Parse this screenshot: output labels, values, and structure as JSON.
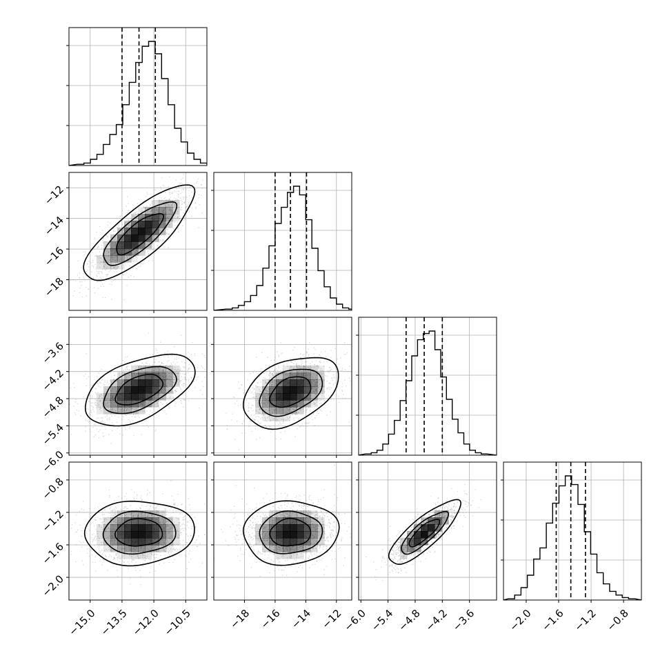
{
  "chart_data": {
    "type": "corner",
    "title": "",
    "grid": true,
    "parameters": [
      {
        "range": [
          -16.0,
          -9.5
        ],
        "ticks": [
          -15.0,
          -13.5,
          -12.0,
          -10.5
        ],
        "tick_labels": [
          "−15.0",
          "−13.5",
          "−12.0",
          "−10.5"
        ],
        "quantiles": [
          -13.5,
          -12.7,
          -11.93
        ],
        "hist": {
          "start": -15.6,
          "width": 0.305,
          "counts": [
            0.01,
            0.02,
            0.05,
            0.09,
            0.17,
            0.25,
            0.33,
            0.49,
            0.67,
            0.83,
            0.96,
            1.0,
            0.9,
            0.7,
            0.49,
            0.3,
            0.19,
            0.1,
            0.05,
            0.02,
            0.01
          ]
        }
      },
      {
        "range": [
          -20.0,
          -11.0
        ],
        "ticks": [
          -18,
          -16,
          -14,
          -12
        ],
        "tick_labels": [
          "−18",
          "−16",
          "−14",
          "−12"
        ],
        "quantiles": [
          -16.0,
          -15.0,
          -13.95
        ],
        "hist": {
          "start": -19.2,
          "width": 0.4,
          "counts": [
            0.01,
            0.02,
            0.04,
            0.07,
            0.12,
            0.2,
            0.34,
            0.52,
            0.7,
            0.83,
            0.95,
            1.0,
            0.93,
            0.73,
            0.5,
            0.32,
            0.19,
            0.1,
            0.05,
            0.02,
            0.01
          ]
        }
      },
      {
        "range": [
          -6.05,
          -3.0
        ],
        "ticks": [
          -6.0,
          -5.4,
          -4.8,
          -4.2,
          -3.6
        ],
        "tick_labels": [
          "−6.0",
          "−5.4",
          "−4.8",
          "−4.2",
          "−3.6"
        ],
        "quantiles": [
          -5.0,
          -4.6,
          -4.2
        ],
        "hist": {
          "start": -5.9,
          "width": 0.128,
          "counts": [
            0.01,
            0.02,
            0.04,
            0.09,
            0.17,
            0.28,
            0.44,
            0.6,
            0.8,
            0.93,
            0.98,
            1.0,
            0.85,
            0.63,
            0.45,
            0.29,
            0.18,
            0.09,
            0.04,
            0.02,
            0.01
          ]
        }
      },
      {
        "range": [
          -2.28,
          -0.58
        ],
        "ticks": [
          -2.0,
          -1.6,
          -1.2,
          -0.8
        ],
        "tick_labels": [
          "−2.0",
          "−1.6",
          "−1.2",
          "−0.8"
        ],
        "quantiles": [
          -1.63,
          -1.45,
          -1.27
        ],
        "hist": {
          "start": -2.22,
          "width": 0.078,
          "counts": [
            0.01,
            0.04,
            0.1,
            0.2,
            0.33,
            0.42,
            0.62,
            0.78,
            0.92,
            1.0,
            0.93,
            0.77,
            0.55,
            0.37,
            0.22,
            0.13,
            0.07,
            0.04,
            0.02,
            0.01
          ]
        }
      }
    ],
    "pairs": [
      {
        "row": 1,
        "col": 0,
        "cx": -12.7,
        "cy": -15.0,
        "rx": 1.25,
        "ry": 1.5,
        "r": 0.8,
        "y_ticks": [
          -12,
          -14,
          -16,
          -18
        ],
        "y_tick_labels": [
          "−12",
          "−14",
          "−16",
          "−18"
        ]
      },
      {
        "row": 2,
        "col": 0,
        "cx": -12.7,
        "cy": -4.6,
        "rx": 1.25,
        "ry": 0.38,
        "r": 0.5,
        "y_ticks": [
          -3.6,
          -4.2,
          -4.8,
          -5.4,
          -6.0
        ],
        "y_tick_labels": [
          "−3.6",
          "−4.2",
          "−4.8",
          "−5.4",
          "−6.0"
        ]
      },
      {
        "row": 2,
        "col": 1,
        "cx": -15.0,
        "cy": -4.65,
        "rx": 1.5,
        "ry": 0.38,
        "r": 0.4
      },
      {
        "row": 3,
        "col": 0,
        "cx": -12.7,
        "cy": -1.45,
        "rx": 1.25,
        "ry": 0.19,
        "r": 0.05,
        "y_ticks": [
          -0.8,
          -1.2,
          -1.6,
          -2.0
        ],
        "y_tick_labels": [
          "−0.8",
          "−1.2",
          "−1.6",
          "−2.0"
        ]
      },
      {
        "row": 3,
        "col": 1,
        "cx": -15.0,
        "cy": -1.45,
        "rx": 1.5,
        "ry": 0.19,
        "r": 0.05
      },
      {
        "row": 3,
        "col": 2,
        "cx": -4.6,
        "cy": -1.45,
        "rx": 0.38,
        "ry": 0.19,
        "r": 0.82
      }
    ],
    "contour_levels": [
      0.5,
      1.0,
      1.5
    ],
    "colors": {
      "axes": "#000000",
      "grid": "#b0b0b0",
      "scatter": "#9a9a9a",
      "density": "#000000",
      "contour": "#000000"
    }
  }
}
